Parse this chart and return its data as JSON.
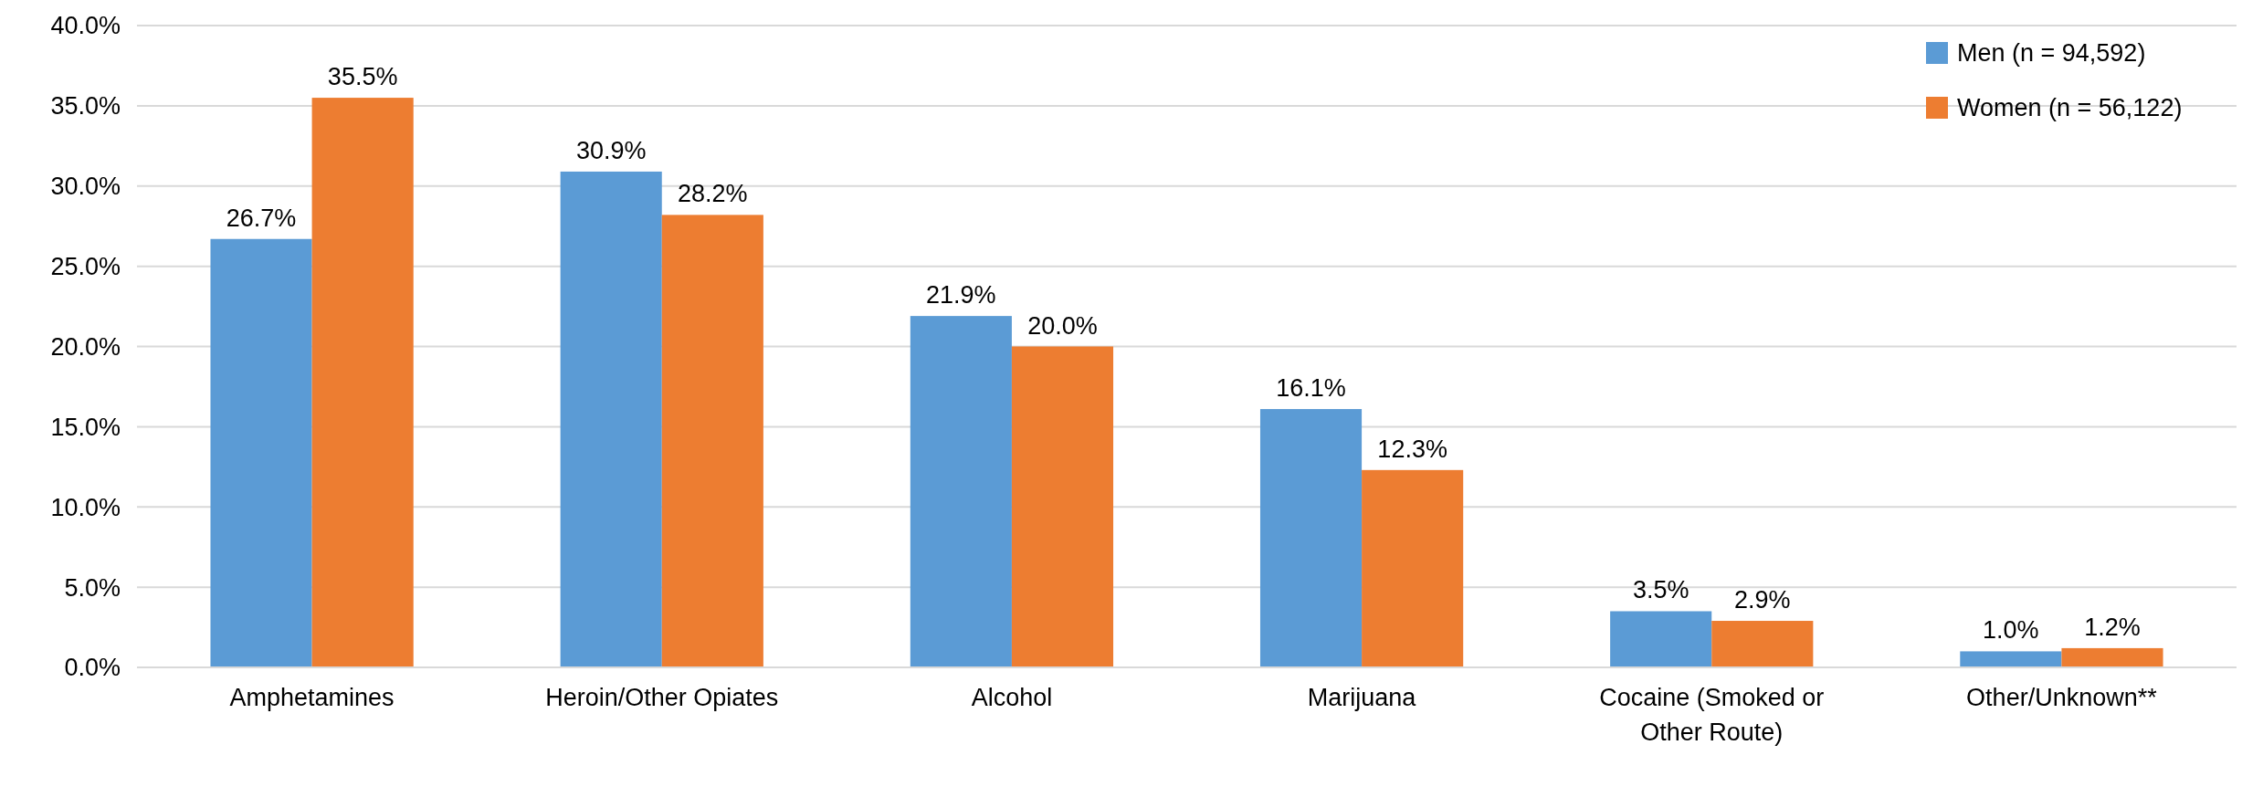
{
  "chart_data": {
    "type": "bar",
    "categories": [
      "Amphetamines",
      "Heroin/Other Opiates",
      "Alcohol",
      "Marijuana",
      "Cocaine (Smoked or Other Route)",
      "Other/Unknown**"
    ],
    "series": [
      {
        "name": "Men (n = 94,592)",
        "color": "#5b9bd5",
        "values": [
          26.7,
          30.9,
          21.9,
          16.1,
          3.5,
          1.0
        ],
        "value_labels": [
          "26.7%",
          "30.9%",
          "21.9%",
          "16.1%",
          "3.5%",
          "1.0%"
        ]
      },
      {
        "name": "Women (n = 56,122)",
        "color": "#ed7d31",
        "values": [
          35.5,
          28.2,
          20.0,
          12.3,
          2.9,
          1.2
        ],
        "value_labels": [
          "35.5%",
          "28.2%",
          "20.0%",
          "12.3%",
          "2.9%",
          "1.2%"
        ]
      }
    ],
    "ylim": [
      0,
      40
    ],
    "yticks": [
      {
        "value": 0,
        "label": "0.0%"
      },
      {
        "value": 5,
        "label": "5.0%"
      },
      {
        "value": 10,
        "label": "10.0%"
      },
      {
        "value": 15,
        "label": "15.0%"
      },
      {
        "value": 20,
        "label": "20.0%"
      },
      {
        "value": 25,
        "label": "25.0%"
      },
      {
        "value": 30,
        "label": "30.0%"
      },
      {
        "value": 35,
        "label": "35.0%"
      },
      {
        "value": 40,
        "label": "40.0%"
      }
    ],
    "grid": "y",
    "legend": "top right"
  }
}
